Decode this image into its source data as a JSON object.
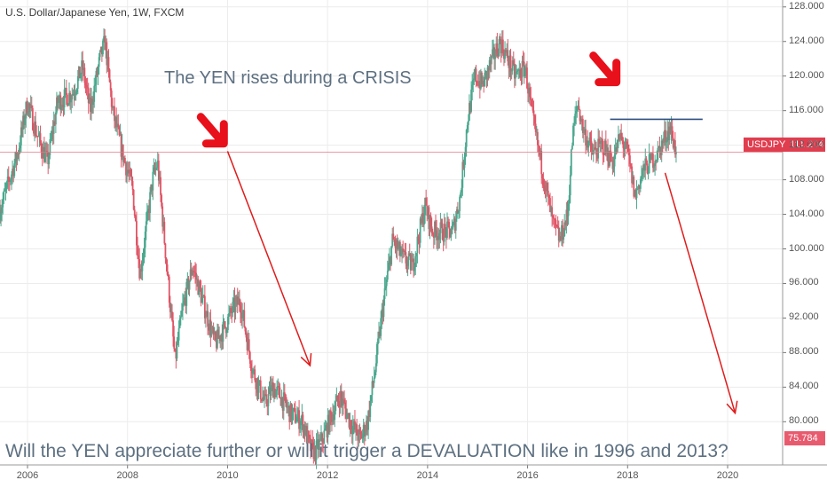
{
  "chart_data": {
    "type": "candlestick",
    "title": "U.S. Dollar/Japanese Yen, 1W, FXCM",
    "symbol": "USDJPY",
    "last_price": "111.204",
    "low_label": "75.784",
    "ylim": [
      75.0,
      128.8
    ],
    "xlim": [
      2005.45,
      2021.1
    ],
    "y_ticks": [
      "128.000",
      "124.000",
      "120.000",
      "116.000",
      "112.000",
      "108.000",
      "104.000",
      "100.000",
      "96.000",
      "92.000",
      "88.000",
      "84.000",
      "80.000"
    ],
    "x_ticks": [
      "2006",
      "2008",
      "2010",
      "2012",
      "2014",
      "2016",
      "2018",
      "2020"
    ],
    "price_path": [
      [
        2005.45,
        104.5
      ],
      [
        2005.8,
        111
      ],
      [
        2006.0,
        117
      ],
      [
        2006.2,
        113
      ],
      [
        2006.4,
        110
      ],
      [
        2006.6,
        117
      ],
      [
        2006.9,
        118
      ],
      [
        2007.1,
        121
      ],
      [
        2007.25,
        116
      ],
      [
        2007.45,
        122
      ],
      [
        2007.55,
        124
      ],
      [
        2007.7,
        116
      ],
      [
        2007.9,
        111
      ],
      [
        2008.1,
        107
      ],
      [
        2008.25,
        97
      ],
      [
        2008.5,
        108
      ],
      [
        2008.6,
        110
      ],
      [
        2008.8,
        97
      ],
      [
        2008.95,
        87
      ],
      [
        2009.1,
        93
      ],
      [
        2009.3,
        98
      ],
      [
        2009.5,
        94
      ],
      [
        2009.75,
        89
      ],
      [
        2009.95,
        91
      ],
      [
        2010.1,
        93
      ],
      [
        2010.25,
        94
      ],
      [
        2010.5,
        86
      ],
      [
        2010.75,
        82
      ],
      [
        2010.9,
        84
      ],
      [
        2011.05,
        83
      ],
      [
        2011.25,
        81
      ],
      [
        2011.5,
        80
      ],
      [
        2011.65,
        77
      ],
      [
        2011.75,
        76.5
      ],
      [
        2011.9,
        78
      ],
      [
        2012.1,
        81
      ],
      [
        2012.25,
        83
      ],
      [
        2012.45,
        80
      ],
      [
        2012.65,
        78
      ],
      [
        2012.8,
        80
      ],
      [
        2012.95,
        86
      ],
      [
        2013.1,
        93
      ],
      [
        2013.3,
        101
      ],
      [
        2013.5,
        99
      ],
      [
        2013.7,
        98
      ],
      [
        2013.95,
        105
      ],
      [
        2014.1,
        102
      ],
      [
        2014.3,
        102
      ],
      [
        2014.5,
        102
      ],
      [
        2014.65,
        106
      ],
      [
        2014.8,
        115
      ],
      [
        2014.95,
        120
      ],
      [
        2015.1,
        119
      ],
      [
        2015.3,
        122
      ],
      [
        2015.45,
        124
      ],
      [
        2015.6,
        122
      ],
      [
        2015.75,
        120
      ],
      [
        2015.95,
        121
      ],
      [
        2016.1,
        115
      ],
      [
        2016.3,
        109
      ],
      [
        2016.5,
        103
      ],
      [
        2016.65,
        101
      ],
      [
        2016.8,
        104
      ],
      [
        2016.9,
        113
      ],
      [
        2017.0,
        117
      ],
      [
        2017.1,
        114
      ],
      [
        2017.3,
        111
      ],
      [
        2017.5,
        112
      ],
      [
        2017.7,
        110
      ],
      [
        2017.85,
        113
      ],
      [
        2018.0,
        111
      ],
      [
        2018.15,
        106
      ],
      [
        2018.3,
        109
      ],
      [
        2018.45,
        110
      ],
      [
        2018.6,
        111
      ],
      [
        2018.75,
        113
      ],
      [
        2018.85,
        114
      ],
      [
        2018.97,
        111.2
      ]
    ],
    "overlays": {
      "price_line": 111.204,
      "resistance_line": {
        "x": [
          2017.65,
          2019.5
        ],
        "y": 115.0
      },
      "arrows": [
        {
          "from": [
            2010.0,
            111.3
          ],
          "to": [
            2011.65,
            86.5
          ]
        },
        {
          "from": [
            2018.75,
            108.8
          ],
          "to": [
            2020.15,
            81.0
          ]
        }
      ],
      "pointer_marks": [
        {
          "at": [
            2009.82,
            112.6
          ],
          "direction": "down-right"
        },
        {
          "at": [
            2017.67,
            119.7
          ],
          "direction": "down-right"
        }
      ]
    },
    "annotations": {
      "top": "The YEN rises during a CRISIS",
      "bottom": "Will the YEN appreciate further or will it trigger a DEVALUATION like in 1996 and 2013?"
    },
    "colors": {
      "up": "#4aa78d",
      "down": "#e05566",
      "arrow": "#e01c1c",
      "resistance": "#2e4d80",
      "price_line": "#e07a85",
      "grid": "#ececec",
      "text": "#5d7081"
    }
  }
}
